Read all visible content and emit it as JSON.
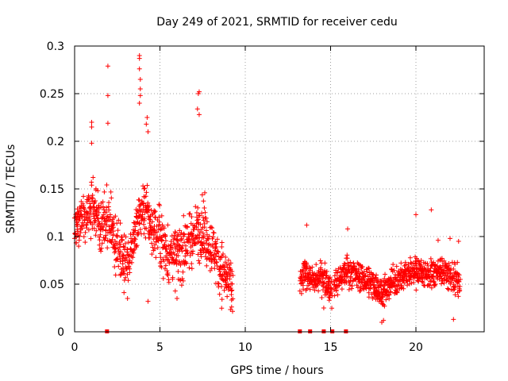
{
  "chart_data": {
    "type": "scatter",
    "title": "Day 249 of 2021, SRMTID for receiver cedu",
    "xlabel": "GPS time / hours",
    "ylabel": "SRMTID / TECUs",
    "xlim": [
      0,
      24
    ],
    "ylim": [
      0,
      0.3
    ],
    "xticks": [
      0,
      5,
      10,
      15,
      20
    ],
    "yticks": [
      0,
      0.05,
      0.1,
      0.15,
      0.2,
      0.25,
      0.3
    ],
    "xtick_labels": [
      "0",
      "5",
      "10",
      "15",
      "20"
    ],
    "ytick_labels": [
      "0",
      "0.05",
      "0.1",
      "0.15",
      "0.2",
      "0.25",
      "0.3"
    ],
    "grid": true,
    "marker": "+",
    "color": "#ff0000",
    "series": [
      {
        "name": "SRMTID",
        "segments": [
          {
            "x_start": 0.0,
            "x_end": 9.3,
            "profile": [
              [
                0.0,
                0.11
              ],
              [
                0.5,
                0.12
              ],
              [
                1.0,
                0.13
              ],
              [
                1.5,
                0.11
              ],
              [
                2.0,
                0.12
              ],
              [
                2.5,
                0.09
              ],
              [
                3.0,
                0.07
              ],
              [
                3.5,
                0.1
              ],
              [
                4.0,
                0.13
              ],
              [
                4.5,
                0.11
              ],
              [
                5.0,
                0.1
              ],
              [
                5.5,
                0.08
              ],
              [
                6.0,
                0.08
              ],
              [
                6.5,
                0.09
              ],
              [
                7.0,
                0.1
              ],
              [
                7.5,
                0.11
              ],
              [
                8.0,
                0.09
              ],
              [
                8.5,
                0.07
              ],
              [
                9.0,
                0.05
              ],
              [
                9.3,
                0.045
              ]
            ],
            "spread": 0.028
          },
          {
            "x_start": 13.2,
            "x_end": 15.1,
            "profile": [
              [
                13.2,
                0.05
              ],
              [
                13.6,
                0.065
              ],
              [
                14.0,
                0.05
              ],
              [
                14.5,
                0.06
              ],
              [
                15.1,
                0.04
              ]
            ],
            "spread": 0.015
          },
          {
            "x_start": 15.2,
            "x_end": 22.6,
            "profile": [
              [
                15.2,
                0.05
              ],
              [
                16.0,
                0.065
              ],
              [
                16.5,
                0.06
              ],
              [
                17.0,
                0.055
              ],
              [
                17.5,
                0.05
              ],
              [
                18.0,
                0.04
              ],
              [
                18.5,
                0.05
              ],
              [
                19.0,
                0.055
              ],
              [
                19.5,
                0.06
              ],
              [
                20.0,
                0.065
              ],
              [
                20.5,
                0.06
              ],
              [
                21.0,
                0.06
              ],
              [
                21.5,
                0.065
              ],
              [
                22.0,
                0.06
              ],
              [
                22.6,
                0.05
              ]
            ],
            "spread": 0.015
          }
        ],
        "outliers": [
          [
            1.95,
            0.279
          ],
          [
            1.95,
            0.248
          ],
          [
            1.95,
            0.219
          ],
          [
            3.8,
            0.29
          ],
          [
            3.8,
            0.287
          ],
          [
            3.8,
            0.276
          ],
          [
            3.85,
            0.265
          ],
          [
            3.85,
            0.255
          ],
          [
            3.85,
            0.248
          ],
          [
            3.8,
            0.24
          ],
          [
            4.25,
            0.225
          ],
          [
            4.2,
            0.218
          ],
          [
            4.3,
            0.21
          ],
          [
            7.3,
            0.252
          ],
          [
            7.25,
            0.25
          ],
          [
            7.2,
            0.234
          ],
          [
            7.3,
            0.228
          ],
          [
            1.0,
            0.22
          ],
          [
            1.0,
            0.215
          ],
          [
            1.0,
            0.198
          ],
          [
            20.9,
            0.128
          ],
          [
            20.0,
            0.123
          ],
          [
            13.6,
            0.112
          ],
          [
            16.0,
            0.108
          ],
          [
            22.0,
            0.098
          ],
          [
            22.5,
            0.095
          ],
          [
            21.3,
            0.096
          ],
          [
            4.3,
            0.032
          ],
          [
            6.0,
            0.035
          ],
          [
            3.1,
            0.035
          ],
          [
            9.2,
            0.026
          ],
          [
            18.0,
            0.01
          ],
          [
            18.1,
            0.012
          ],
          [
            22.2,
            0.013
          ],
          [
            14.6,
            0.025
          ]
        ]
      }
    ],
    "gap_markers_x": [
      1.9,
      13.2,
      13.8,
      14.6,
      15.1,
      15.9
    ]
  }
}
